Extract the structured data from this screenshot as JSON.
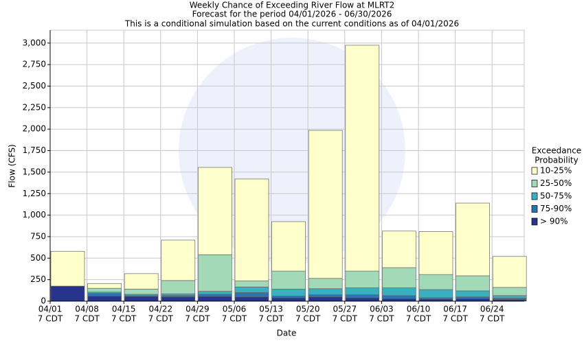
{
  "chart_data": {
    "type": "stacked-bar",
    "title": "Weekly Chance of Exceeding River Flow at MLRT2",
    "subtitle": "Forecast for the period 04/01/2026 - 06/30/2026",
    "note": "This is a conditional simulation based on the current conditions as of 04/01/2026",
    "x_label": "Date",
    "y_label": "Flow (CFS)",
    "legend_title": [
      "Exceedance",
      "Probability"
    ],
    "categories": [
      "04/01",
      "04/08",
      "04/15",
      "04/22",
      "04/29",
      "05/06",
      "05/13",
      "05/20",
      "05/27",
      "06/03",
      "06/10",
      "06/17",
      "06/24"
    ],
    "category_sublabel": "7 CDT",
    "series": [
      {
        "name": "> 90%",
        "color": "#27348b",
        "values": [
          175,
          60,
          55,
          50,
          55,
          50,
          40,
          50,
          40,
          30,
          25,
          30,
          20
        ]
      },
      {
        "name": "75-90%",
        "color": "#2a74b0",
        "values": [
          0,
          30,
          10,
          15,
          25,
          50,
          20,
          25,
          35,
          35,
          15,
          20,
          15
        ]
      },
      {
        "name": "50-75%",
        "color": "#3aafc0",
        "values": [
          0,
          15,
          15,
          20,
          35,
          65,
          80,
          70,
          80,
          90,
          95,
          70,
          30
        ]
      },
      {
        "name": "25-50%",
        "color": "#a2d9b6",
        "values": [
          0,
          45,
          60,
          155,
          425,
          70,
          210,
          120,
          195,
          235,
          175,
          175,
          95
        ]
      },
      {
        "name": "10-25%",
        "color": "#ffffcc",
        "values": [
          405,
          55,
          180,
          470,
          1015,
          1185,
          575,
          1720,
          2625,
          425,
          500,
          845,
          360
        ]
      }
    ],
    "ylim": [
      0,
      3150
    ],
    "yticks": [
      0,
      250,
      500,
      750,
      {
        "value": 1000,
        "label": "1,000"
      },
      {
        "value": 1250,
        "label": "1,250"
      },
      {
        "value": 1500,
        "label": "1,500"
      },
      {
        "value": 1750,
        "label": "1,750"
      },
      {
        "value": 2000,
        "label": "2,000"
      },
      {
        "value": 2250,
        "label": "2,250"
      },
      {
        "value": 2500,
        "label": "2,500"
      },
      {
        "value": 2750,
        "label": "2,750"
      },
      {
        "value": 3000,
        "label": "3,000"
      }
    ],
    "grid": true
  }
}
